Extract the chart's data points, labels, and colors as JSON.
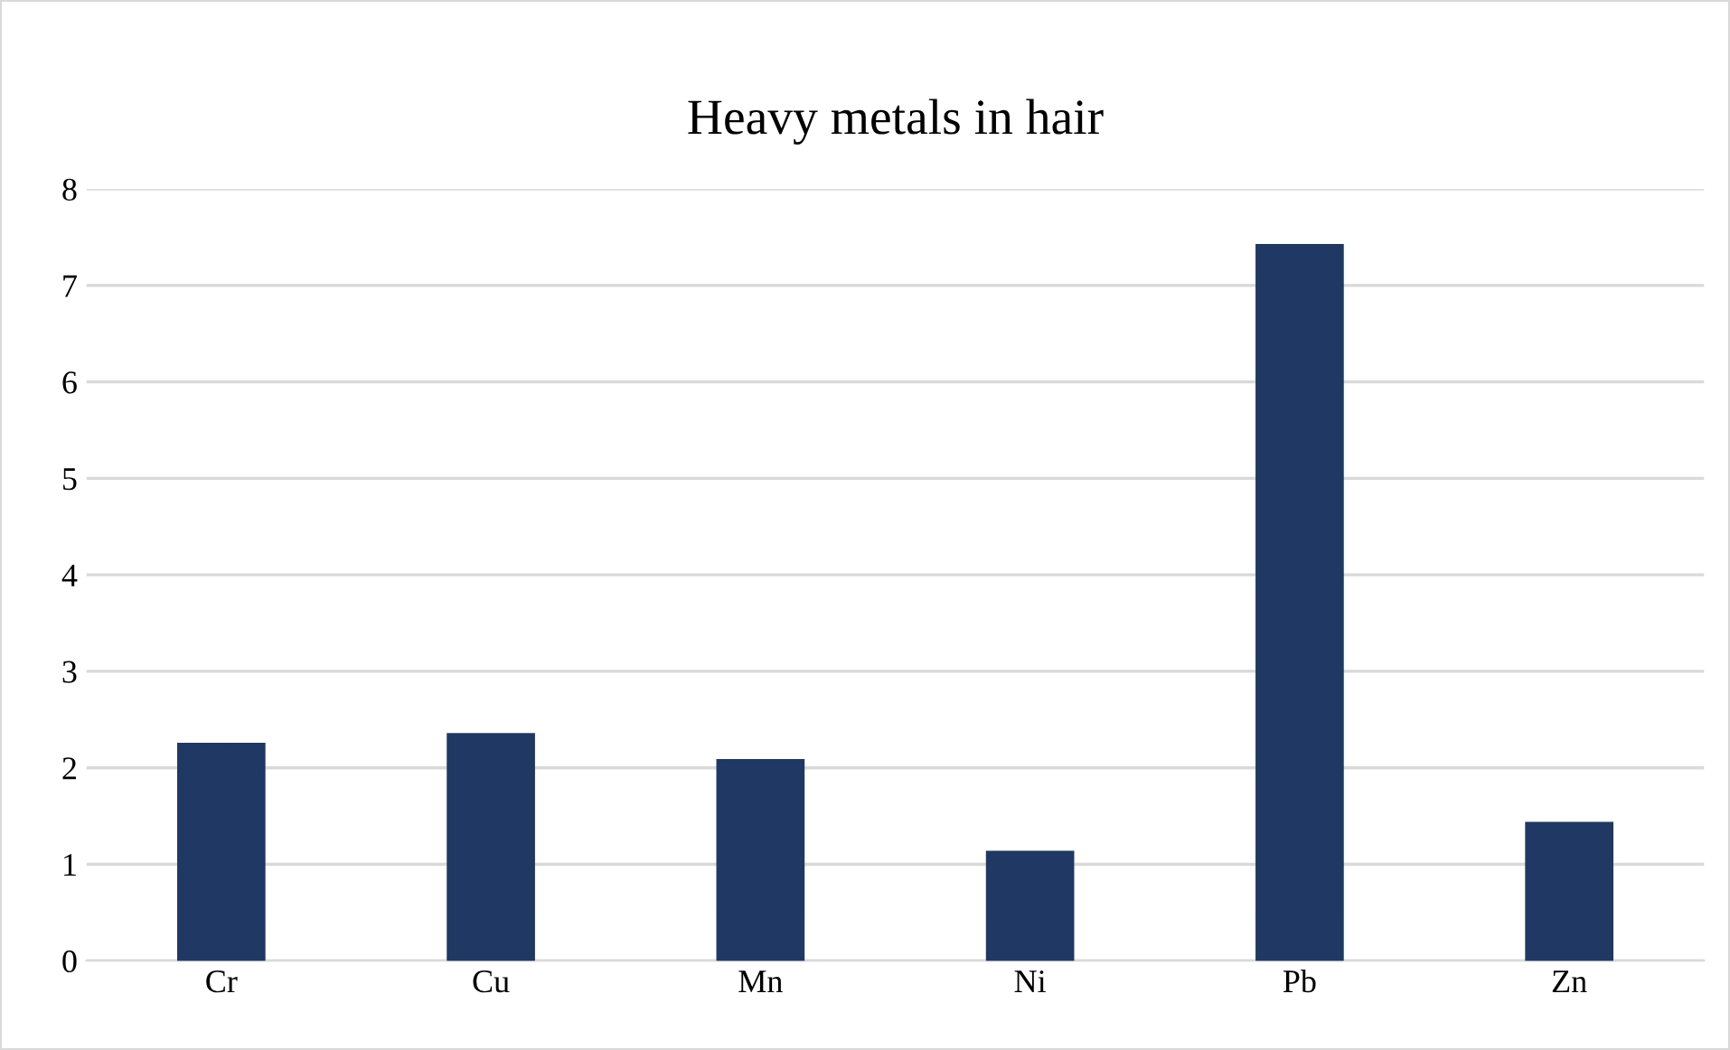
{
  "chart_data": {
    "type": "bar",
    "title": "Heavy metals in hair",
    "categories": [
      "Cr",
      "Cu",
      "Mn",
      "Ni",
      "Pb",
      "Zn"
    ],
    "values": [
      2.25,
      2.35,
      2.08,
      1.13,
      7.42,
      1.43
    ],
    "color": "#1f3864",
    "ylim": [
      0,
      8
    ],
    "yticks": [
      0,
      1,
      2,
      3,
      4,
      5,
      6,
      7,
      8
    ],
    "grid": "y",
    "legend": false
  }
}
